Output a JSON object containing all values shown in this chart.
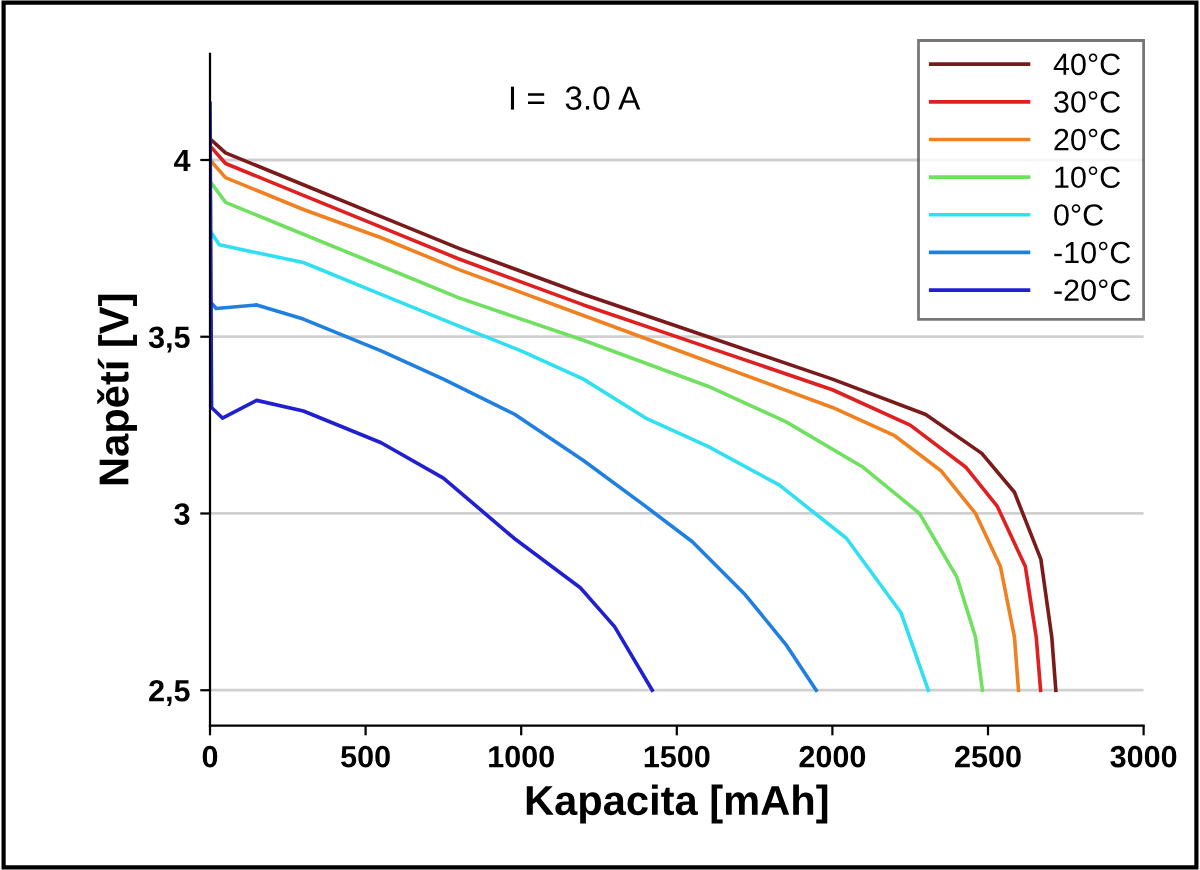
{
  "chart_data": {
    "type": "line",
    "xlabel": "Kapacita [mAh]",
    "ylabel": "Napětí [V]",
    "annotations": [
      "I =  3.0 A"
    ],
    "xlim": [
      0,
      3000
    ],
    "xticks": [
      0,
      500,
      1000,
      1500,
      2000,
      2500,
      3000
    ],
    "ylim": [
      2.4,
      4.3
    ],
    "yticks": [
      {
        "value": 2.5,
        "label": "2,5"
      },
      3,
      {
        "value": 3.5,
        "label": "3,5"
      },
      4
    ],
    "grid": "y",
    "legend": "top right",
    "marker": "none",
    "line_style": "solid",
    "series": [
      {
        "name": "40°C",
        "color": "#7b1a1a",
        "x": [
          0,
          50,
          300,
          550,
          800,
          1200,
          1600,
          2000,
          2300,
          2480,
          2585,
          2670,
          2705,
          2718
        ],
        "values": [
          4.06,
          4.02,
          3.93,
          3.84,
          3.75,
          3.62,
          3.5,
          3.38,
          3.28,
          3.17,
          3.06,
          2.87,
          2.65,
          2.5
        ]
      },
      {
        "name": "30°C",
        "color": "#e02020",
        "x": [
          0,
          50,
          300,
          550,
          800,
          1200,
          1600,
          2000,
          2250,
          2430,
          2530,
          2620,
          2655,
          2669
        ],
        "values": [
          4.04,
          3.99,
          3.9,
          3.81,
          3.72,
          3.59,
          3.47,
          3.35,
          3.25,
          3.13,
          3.02,
          2.85,
          2.65,
          2.5
        ]
      },
      {
        "name": "20°C",
        "color": "#f08020",
        "x": [
          0,
          50,
          300,
          550,
          800,
          1200,
          1600,
          2000,
          2200,
          2350,
          2460,
          2540,
          2585,
          2598
        ],
        "values": [
          4.0,
          3.95,
          3.86,
          3.78,
          3.69,
          3.56,
          3.43,
          3.3,
          3.22,
          3.12,
          3.0,
          2.85,
          2.65,
          2.5
        ]
      },
      {
        "name": "10°C",
        "color": "#70e060",
        "x": [
          0,
          50,
          300,
          550,
          800,
          1200,
          1600,
          1850,
          2100,
          2280,
          2400,
          2460,
          2482
        ],
        "values": [
          3.94,
          3.88,
          3.79,
          3.7,
          3.61,
          3.49,
          3.36,
          3.26,
          3.13,
          3.0,
          2.82,
          2.65,
          2.5
        ]
      },
      {
        "name": "0°C",
        "color": "#30e0f0",
        "x": [
          0,
          30,
          300,
          550,
          800,
          1000,
          1200,
          1400,
          1600,
          1830,
          2045,
          2220,
          2308
        ],
        "values": [
          3.8,
          3.76,
          3.71,
          3.62,
          3.53,
          3.46,
          3.38,
          3.27,
          3.19,
          3.08,
          2.93,
          2.72,
          2.5
        ]
      },
      {
        "name": "-10°C",
        "color": "#2080e0",
        "x": [
          0,
          20,
          150,
          300,
          550,
          750,
          980,
          1200,
          1400,
          1550,
          1720,
          1850,
          1948
        ],
        "values": [
          3.6,
          3.58,
          3.59,
          3.55,
          3.46,
          3.38,
          3.28,
          3.15,
          3.02,
          2.92,
          2.77,
          2.63,
          2.5
        ]
      },
      {
        "name": "-20°C",
        "color": "#2020d0",
        "x": [
          0,
          5,
          40,
          150,
          300,
          550,
          750,
          977,
          1190,
          1300,
          1421
        ],
        "values": [
          4.16,
          3.3,
          3.27,
          3.32,
          3.29,
          3.2,
          3.1,
          2.93,
          2.79,
          2.68,
          2.5
        ]
      }
    ]
  }
}
